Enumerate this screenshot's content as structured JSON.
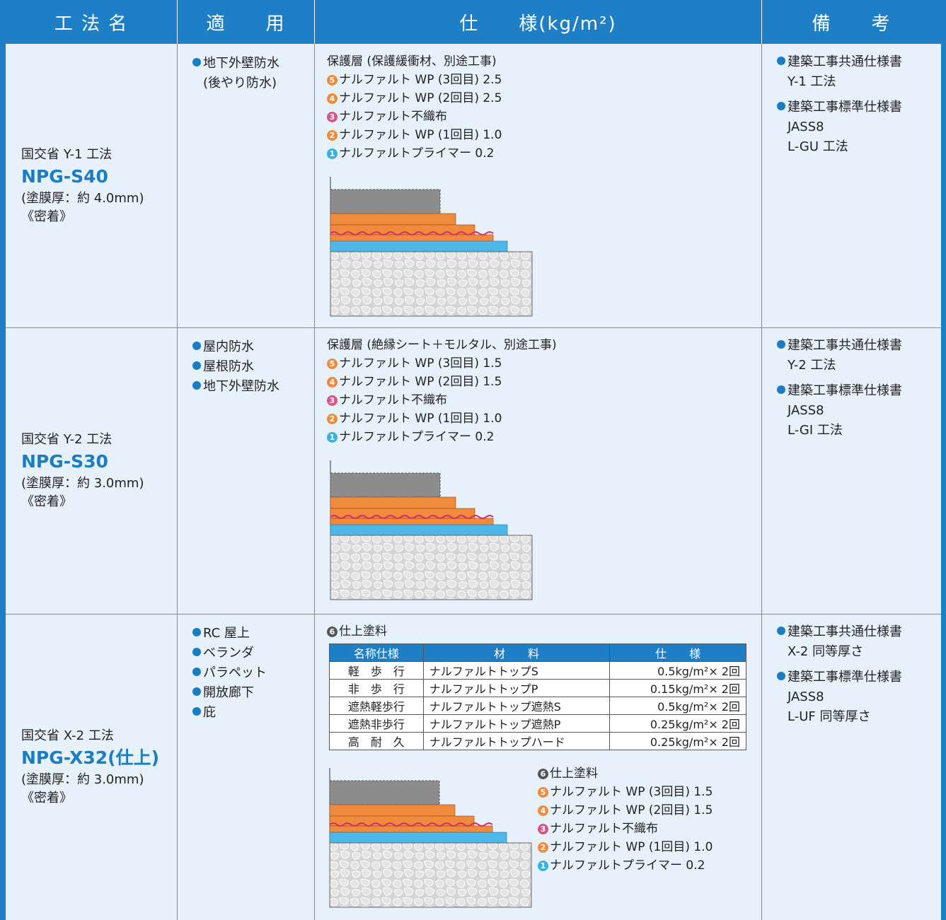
{
  "header": [
    "工 法 名",
    "適　　用",
    "仕　　様(kg/m²)",
    "備　　考"
  ],
  "rows": [
    {
      "method": {
        "agency": "国交省 Y-1 工法",
        "name": "NPG-S40",
        "thickness": "(塗膜厚：約 4.0mm)",
        "adhesion": "《密着》"
      },
      "usage": [
        {
          "text": "地下外壁防水",
          "sub": "(後やり防水)"
        }
      ],
      "spec": {
        "intro": "保護層 (保護緩衝材、別途工事)",
        "layers": [
          {
            "num": "5",
            "color": "#f08a3c",
            "text": "ナルファルト WP (3回目) 2.5"
          },
          {
            "num": "4",
            "color": "#f08a3c",
            "text": "ナルファルト WP (2回目) 2.5"
          },
          {
            "num": "3",
            "color": "#d3568a",
            "text": "ナルファルト不織布"
          },
          {
            "num": "2",
            "color": "#f08a3c",
            "text": "ナルファルト WP (1回目) 1.0"
          },
          {
            "num": "1",
            "color": "#3bb0e0",
            "text": "ナルファルトプライマー 0.2"
          }
        ]
      },
      "notes": [
        {
          "title": "建築工事共通仕様書",
          "lines": [
            "Y-1 工法"
          ]
        },
        {
          "title": "建築工事標準仕様書",
          "lines": [
            "JASS8",
            "L-GU 工法"
          ]
        }
      ]
    },
    {
      "method": {
        "agency": "国交省 Y-2 工法",
        "name": "NPG-S30",
        "thickness": "(塗膜厚：約 3.0mm)",
        "adhesion": "《密着》"
      },
      "usage": [
        {
          "text": "屋内防水"
        },
        {
          "text": "屋根防水"
        },
        {
          "text": "地下外壁防水"
        }
      ],
      "spec": {
        "intro": "保護層 (絶縁シート＋モルタル、別途工事)",
        "layers": [
          {
            "num": "5",
            "color": "#f08a3c",
            "text": "ナルファルト WP (3回目) 1.5"
          },
          {
            "num": "4",
            "color": "#f08a3c",
            "text": "ナルファルト WP (2回目) 1.5"
          },
          {
            "num": "3",
            "color": "#d3568a",
            "text": "ナルファルト不織布"
          },
          {
            "num": "2",
            "color": "#f08a3c",
            "text": "ナルファルト WP (1回目) 1.0"
          },
          {
            "num": "1",
            "color": "#3bb0e0",
            "text": "ナルファルトプライマー 0.2"
          }
        ]
      },
      "notes": [
        {
          "title": "建築工事共通仕様書",
          "lines": [
            "Y-2 工法"
          ]
        },
        {
          "title": "建築工事標準仕様書",
          "lines": [
            "JASS8",
            "L-GI 工法"
          ]
        }
      ]
    },
    {
      "method": {
        "agency": "国交省 X-2 工法",
        "name": "NPG-X32(仕上)",
        "thickness": "(塗膜厚：約 3.0mm)",
        "adhesion": "《密着》"
      },
      "usage": [
        {
          "text": "RC 屋上"
        },
        {
          "text": "ベランダ"
        },
        {
          "text": "パラペット"
        },
        {
          "text": "開放廊下"
        },
        {
          "text": "庇"
        }
      ],
      "spec": {
        "finish": {
          "num": "6",
          "color": "#555555",
          "text": "仕上塗料"
        },
        "table": {
          "header": [
            "名称仕様",
            "材　　料",
            "仕　　様"
          ],
          "rows": [
            [
              "軽　歩　行",
              "ナルファルトトップS",
              "0.5kg/m²× 2回"
            ],
            [
              "非　歩　行",
              "ナルファルトトップP",
              "0.15kg/m²× 2回"
            ],
            [
              "遮熱軽歩行",
              "ナルファルトトップ遮熱S",
              "0.5kg/m²× 2回"
            ],
            [
              "遮熱非歩行",
              "ナルファルトトップ遮熱P",
              "0.25kg/m²× 2回"
            ],
            [
              "高　耐　久",
              "ナルファルトトップハード",
              "0.25kg/m²× 2回"
            ]
          ]
        },
        "layers": [
          {
            "num": "6",
            "color": "#555555",
            "text": "仕上塗料"
          },
          {
            "num": "5",
            "color": "#f08a3c",
            "text": "ナルファルト WP (3回目) 1.5"
          },
          {
            "num": "4",
            "color": "#f08a3c",
            "text": "ナルファルト WP (2回目) 1.5"
          },
          {
            "num": "3",
            "color": "#d3568a",
            "text": "ナルファルト不織布"
          },
          {
            "num": "2",
            "color": "#f08a3c",
            "text": "ナルファルト WP (1回目) 1.0"
          },
          {
            "num": "1",
            "color": "#3bb0e0",
            "text": "ナルファルトプライマー 0.2"
          }
        ]
      },
      "notes": [
        {
          "title": "建築工事共通仕様書",
          "lines": [
            "X-2 同等厚さ"
          ]
        },
        {
          "title": "建築工事標準仕様書",
          "lines": [
            "JASS8",
            "L-UF 同等厚さ"
          ]
        }
      ]
    }
  ]
}
